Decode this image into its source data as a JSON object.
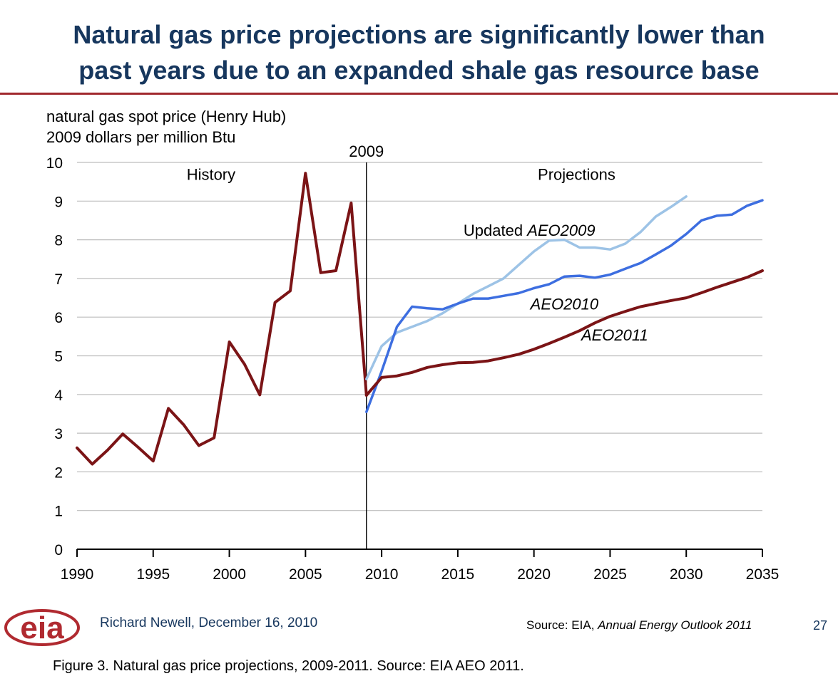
{
  "slide": {
    "title_line1": "Natural gas price projections are significantly lower than",
    "title_line2": "past years due to an expanded shale gas resource base",
    "author": "Richard Newell, December 16, 2010",
    "source_prefix": "Source:  EIA, ",
    "source_title": "Annual Energy Outlook 2011",
    "page_number": "27",
    "logo_text": "eia",
    "colors": {
      "title": "#17375e",
      "rule": "#a0282d",
      "logo": "#b02a30"
    }
  },
  "caption": "Figure 3.  Natural gas price projections, 2009-2011.  Source:  EIA AEO 2011.",
  "chart_data": {
    "type": "line",
    "ylabel_line1": "natural gas spot price (Henry Hub)",
    "ylabel_line2": "2009 dollars per million Btu",
    "xlim": [
      1990,
      2035
    ],
    "ylim": [
      0,
      10
    ],
    "xticks": [
      1990,
      1995,
      2000,
      2005,
      2010,
      2015,
      2020,
      2025,
      2030,
      2035
    ],
    "yticks": [
      0,
      1,
      2,
      3,
      4,
      5,
      6,
      7,
      8,
      9,
      10
    ],
    "grid": true,
    "divider": {
      "x": 2009,
      "label": "2009"
    },
    "region_labels": {
      "history": "History",
      "projections": "Projections"
    },
    "series": [
      {
        "name": "History",
        "color": "#7b1416",
        "points": [
          [
            1990,
            2.62
          ],
          [
            1991,
            2.2
          ],
          [
            1992,
            2.56
          ],
          [
            1993,
            2.98
          ],
          [
            1994,
            2.64
          ],
          [
            1995,
            2.28
          ],
          [
            1996,
            3.64
          ],
          [
            1997,
            3.22
          ],
          [
            1998,
            2.68
          ],
          [
            1999,
            2.88
          ],
          [
            2000,
            5.36
          ],
          [
            2001,
            4.78
          ],
          [
            2002,
            3.99
          ],
          [
            2003,
            6.38
          ],
          [
            2004,
            6.68
          ],
          [
            2005,
            9.72
          ],
          [
            2006,
            7.15
          ],
          [
            2007,
            7.2
          ],
          [
            2008,
            8.95
          ],
          [
            2009,
            3.98
          ]
        ]
      },
      {
        "name": "Updated AEO2009",
        "label_plain": "Updated ",
        "label_italic": "AEO2009",
        "color": "#9dc3e6",
        "points": [
          [
            2009,
            4.4
          ],
          [
            2010,
            5.25
          ],
          [
            2011,
            5.6
          ],
          [
            2012,
            5.75
          ],
          [
            2013,
            5.9
          ],
          [
            2014,
            6.1
          ],
          [
            2015,
            6.35
          ],
          [
            2016,
            6.6
          ],
          [
            2017,
            6.8
          ],
          [
            2018,
            7.0
          ],
          [
            2019,
            7.35
          ],
          [
            2020,
            7.7
          ],
          [
            2021,
            7.98
          ],
          [
            2022,
            8.0
          ],
          [
            2023,
            7.8
          ],
          [
            2024,
            7.8
          ],
          [
            2025,
            7.75
          ],
          [
            2026,
            7.9
          ],
          [
            2027,
            8.2
          ],
          [
            2028,
            8.6
          ],
          [
            2029,
            8.85
          ],
          [
            2030,
            9.12
          ]
        ]
      },
      {
        "name": "AEO2010",
        "label_plain": "",
        "label_italic": "AEO2010",
        "color": "#3d6ee0",
        "points": [
          [
            2009,
            3.55
          ],
          [
            2010,
            4.6
          ],
          [
            2011,
            5.75
          ],
          [
            2012,
            6.27
          ],
          [
            2013,
            6.23
          ],
          [
            2014,
            6.2
          ],
          [
            2015,
            6.35
          ],
          [
            2016,
            6.48
          ],
          [
            2017,
            6.48
          ],
          [
            2018,
            6.55
          ],
          [
            2019,
            6.62
          ],
          [
            2020,
            6.75
          ],
          [
            2021,
            6.85
          ],
          [
            2022,
            7.05
          ],
          [
            2023,
            7.07
          ],
          [
            2024,
            7.02
          ],
          [
            2025,
            7.1
          ],
          [
            2026,
            7.25
          ],
          [
            2027,
            7.4
          ],
          [
            2028,
            7.62
          ],
          [
            2029,
            7.85
          ],
          [
            2030,
            8.15
          ],
          [
            2031,
            8.5
          ],
          [
            2032,
            8.62
          ],
          [
            2033,
            8.65
          ],
          [
            2034,
            8.88
          ],
          [
            2035,
            9.02
          ]
        ]
      },
      {
        "name": "AEO2011",
        "label_plain": "",
        "label_italic": "AEO2011",
        "color": "#7b1416",
        "points": [
          [
            2009,
            3.98
          ],
          [
            2010,
            4.44
          ],
          [
            2011,
            4.48
          ],
          [
            2012,
            4.57
          ],
          [
            2013,
            4.7
          ],
          [
            2014,
            4.77
          ],
          [
            2015,
            4.82
          ],
          [
            2016,
            4.83
          ],
          [
            2017,
            4.87
          ],
          [
            2018,
            4.95
          ],
          [
            2019,
            5.04
          ],
          [
            2020,
            5.17
          ],
          [
            2021,
            5.32
          ],
          [
            2022,
            5.48
          ],
          [
            2023,
            5.65
          ],
          [
            2024,
            5.85
          ],
          [
            2025,
            6.02
          ],
          [
            2026,
            6.15
          ],
          [
            2027,
            6.27
          ],
          [
            2028,
            6.35
          ],
          [
            2029,
            6.43
          ],
          [
            2030,
            6.5
          ],
          [
            2031,
            6.63
          ],
          [
            2032,
            6.77
          ],
          [
            2033,
            6.9
          ],
          [
            2034,
            7.03
          ],
          [
            2035,
            7.2
          ]
        ]
      }
    ]
  }
}
